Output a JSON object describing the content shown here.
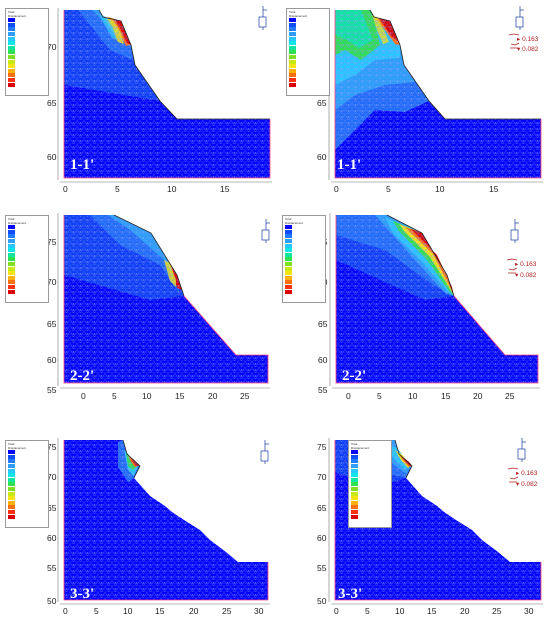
{
  "legend": {
    "header": [
      "Total",
      "Displacement"
    ],
    "colors": [
      "#0000ff",
      "#0f4cff",
      "#1f7bff",
      "#2f9fff",
      "#27c8ff",
      "#0fe6ea",
      "#10e6a0",
      "#30e050",
      "#80e020",
      "#c8e818",
      "#f5e410",
      "#ffb00a",
      "#ff7010",
      "#ff3010",
      "#dd0000"
    ]
  },
  "arrow_legend": {
    "upper": "0.163",
    "lower": "0.082"
  },
  "panels": [
    {
      "key": "p11",
      "label": "1-1'",
      "x_ticks": [
        "0",
        "5",
        "10",
        "15"
      ],
      "y_ticks": [
        "70",
        "65",
        "60"
      ],
      "show_arrow_legend": false
    },
    {
      "key": "p11b",
      "label": "1-1'",
      "x_ticks": [
        "0",
        "5",
        "10",
        "15"
      ],
      "y_ticks": [
        "70",
        "65",
        "60"
      ],
      "show_arrow_legend": true
    },
    {
      "key": "p22",
      "label": "2-2'",
      "x_ticks": [
        "0",
        "5",
        "10",
        "15",
        "20",
        "25"
      ],
      "y_ticks": [
        "75",
        "70",
        "65",
        "60",
        "55"
      ],
      "show_arrow_legend": false
    },
    {
      "key": "p22b",
      "label": "2-2'",
      "x_ticks": [
        "0",
        "5",
        "10",
        "15",
        "20",
        "25"
      ],
      "y_ticks": [
        "75",
        "70",
        "65",
        "60",
        "55"
      ],
      "show_arrow_legend": true
    },
    {
      "key": "p33",
      "label": "3-3'",
      "x_ticks": [
        "0",
        "5",
        "10",
        "15",
        "20",
        "25",
        "30"
      ],
      "y_ticks": [
        "75",
        "70",
        "65",
        "60",
        "55",
        "50"
      ],
      "show_arrow_legend": false
    },
    {
      "key": "p33b",
      "label": "3-3'",
      "x_ticks": [
        "0",
        "5",
        "10",
        "15",
        "20",
        "25",
        "30"
      ],
      "y_ticks": [
        "75",
        "70",
        "65",
        "60",
        "55",
        "50"
      ],
      "show_arrow_legend": true
    }
  ]
}
